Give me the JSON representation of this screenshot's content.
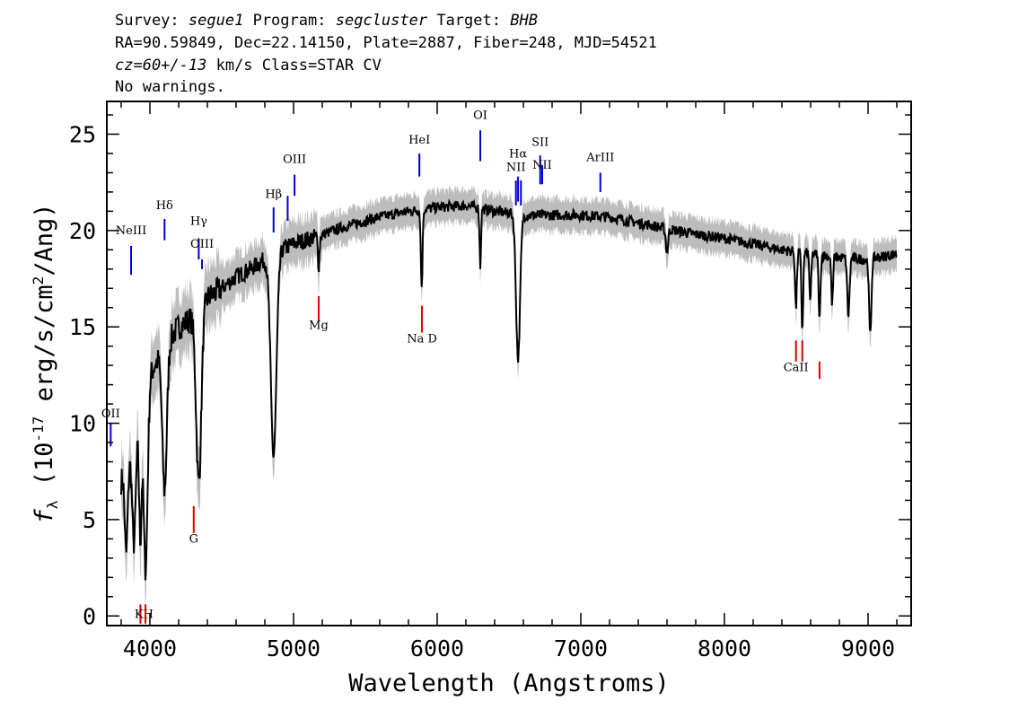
{
  "header": {
    "line1": {
      "survey_label": "Survey:",
      "survey": "segue1",
      "program_label": "Program:",
      "program": "segcluster",
      "target_label": "Target:",
      "target": "BHB"
    },
    "line2": "RA=90.59849, Dec=22.14150, Plate=2887, Fiber=248, MJD=54521",
    "line3": {
      "cz": "cz=60+/-13",
      "rest": " km/s Class=STAR CV"
    },
    "line4": "No warnings."
  },
  "chart_data": {
    "type": "line",
    "xlabel": "Wavelength (Angstroms)",
    "ylabel": "f",
    "ylabel_sub": "λ",
    "ylabel_rest": " (10",
    "ylabel_exp": "-17",
    "ylabel_units": " erg/s/cm",
    "ylabel_exp2": "2",
    "ylabel_tail": "/Ang)",
    "xlim": [
      3700,
      9300
    ],
    "ylim": [
      -0.5,
      26.7
    ],
    "x_ticks": [
      4000,
      5000,
      6000,
      7000,
      8000,
      9000
    ],
    "x_tick_labels": [
      "4000",
      "5000",
      "6000",
      "7000",
      "8000",
      "9000"
    ],
    "y_ticks": [
      0,
      5,
      10,
      15,
      20,
      25
    ],
    "y_tick_labels": [
      "0",
      "5",
      "10",
      "15",
      "20",
      "25"
    ],
    "colors": {
      "spectrum": "#000000",
      "error_band": "#bdbdbd",
      "emission": "#0000cc",
      "absorption": "#dd0000"
    },
    "continuum": [
      [
        3800,
        7.0
      ],
      [
        3900,
        9.0
      ],
      [
        4000,
        12.5
      ],
      [
        4100,
        14.0
      ],
      [
        4200,
        15.0
      ],
      [
        4300,
        15.5
      ],
      [
        4400,
        16.5
      ],
      [
        4500,
        17.0
      ],
      [
        4600,
        17.6
      ],
      [
        4700,
        18.0
      ],
      [
        4800,
        18.5
      ],
      [
        4900,
        19.0
      ],
      [
        5000,
        19.3
      ],
      [
        5200,
        19.8
      ],
      [
        5400,
        20.3
      ],
      [
        5600,
        20.7
      ],
      [
        5800,
        21.0
      ],
      [
        6000,
        21.2
      ],
      [
        6200,
        21.3
      ],
      [
        6400,
        21.0
      ],
      [
        6600,
        20.8
      ],
      [
        6800,
        20.8
      ],
      [
        7000,
        20.8
      ],
      [
        7200,
        20.7
      ],
      [
        7400,
        20.4
      ],
      [
        7600,
        20.1
      ],
      [
        7800,
        19.8
      ],
      [
        8000,
        19.6
      ],
      [
        8200,
        19.3
      ],
      [
        8400,
        19.0
      ],
      [
        8600,
        18.8
      ],
      [
        8800,
        18.6
      ],
      [
        9000,
        18.5
      ],
      [
        9200,
        18.8
      ]
    ],
    "absorption_features": [
      {
        "center": 3835,
        "depth": 4.5,
        "width": 10
      },
      {
        "center": 3889,
        "depth": 5.0,
        "width": 12
      },
      {
        "center": 3933,
        "depth": 6.0,
        "width": 8
      },
      {
        "center": 3970,
        "depth": 9.0,
        "width": 14
      },
      {
        "center": 4102,
        "depth": 7.5,
        "width": 16
      },
      {
        "center": 4340,
        "depth": 9.0,
        "width": 18
      },
      {
        "center": 4861,
        "depth": 10.5,
        "width": 20
      },
      {
        "center": 5175,
        "depth": 1.5,
        "width": 6
      },
      {
        "center": 5892,
        "depth": 4.0,
        "width": 6
      },
      {
        "center": 6300,
        "depth": 3.0,
        "width": 5
      },
      {
        "center": 6563,
        "depth": 7.5,
        "width": 14
      },
      {
        "center": 7600,
        "depth": 1.2,
        "width": 8
      },
      {
        "center": 8498,
        "depth": 3.0,
        "width": 6
      },
      {
        "center": 8542,
        "depth": 4.0,
        "width": 6
      },
      {
        "center": 8598,
        "depth": 2.5,
        "width": 6
      },
      {
        "center": 8662,
        "depth": 3.5,
        "width": 6
      },
      {
        "center": 8750,
        "depth": 2.5,
        "width": 6
      },
      {
        "center": 8863,
        "depth": 3.0,
        "width": 8
      },
      {
        "center": 9015,
        "depth": 4.0,
        "width": 8
      }
    ],
    "emission_lines": [
      {
        "label": "OII",
        "x": 3727,
        "y0": 8.8,
        "y1": 10.0,
        "label_y": 10.3
      },
      {
        "label": "NeIII",
        "x": 3869,
        "y0": 17.7,
        "y1": 19.2,
        "label_y": 19.8
      },
      {
        "label": "Hδ",
        "x": 4102,
        "y0": 19.5,
        "y1": 20.6,
        "label_y": 21.1
      },
      {
        "label": "Hγ",
        "x": 4340,
        "y0": 18.5,
        "y1": 19.6,
        "label_y": 20.3
      },
      {
        "label": "OIII",
        "x": 4363,
        "y0": 18.0,
        "y1": 18.5,
        "label_y": 19.1
      },
      {
        "label": "Hβ",
        "x": 4861,
        "y0": 19.9,
        "y1": 21.2,
        "label_y": 21.7
      },
      {
        "label": "OIII",
        "x": 4959,
        "y0": 20.5,
        "y1": 21.8,
        "label_y": null
      },
      {
        "label": "OIII",
        "x": 5007,
        "y0": 21.8,
        "y1": 22.9,
        "label_y": 23.5
      },
      {
        "label": "HeI",
        "x": 5876,
        "y0": 22.8,
        "y1": 24.0,
        "label_y": 24.5
      },
      {
        "label": "OI",
        "x": 6300,
        "y0": 23.6,
        "y1": 25.2,
        "label_y": 25.8
      },
      {
        "label": "NII",
        "x": 6548,
        "y0": 21.3,
        "y1": 22.6,
        "label_y": 23.1
      },
      {
        "label": "Hα",
        "x": 6563,
        "y0": 21.5,
        "y1": 22.8,
        "label_y": 23.8
      },
      {
        "label": "NII",
        "x": 6583,
        "y0": 21.3,
        "y1": 22.6,
        "label_y": null
      },
      {
        "label": "SII",
        "x": 6717,
        "y0": 22.4,
        "y1": 23.9,
        "label_y": 24.4
      },
      {
        "label": "NII",
        "x": 6731,
        "y0": 22.4,
        "y1": 23.4,
        "label_y": 23.2
      },
      {
        "label": "ArIII",
        "x": 7136,
        "y0": 22.0,
        "y1": 23.0,
        "label_y": 23.6
      }
    ],
    "absorption_lines": [
      {
        "label": "KH",
        "x": 3934,
        "y0": 0.6,
        "y1": -0.4
      },
      {
        "label": "",
        "x": 3969,
        "y0": 0.6,
        "y1": -0.4
      },
      {
        "label": "G",
        "x": 4305,
        "y0": 5.7,
        "y1": 4.3
      },
      {
        "label": "Mg",
        "x": 5175,
        "y0": 16.6,
        "y1": 15.3
      },
      {
        "label": "Na D",
        "x": 5894,
        "y0": 16.1,
        "y1": 14.7
      },
      {
        "label": "CaII",
        "x": 8498,
        "y0": 14.3,
        "y1": 13.2
      },
      {
        "label": "",
        "x": 8542,
        "y0": 14.3,
        "y1": 13.2
      },
      {
        "label": "",
        "x": 8662,
        "y0": 13.2,
        "y1": 12.3
      }
    ],
    "absorption_label_positions": {
      "KH": -0.1,
      "G": 3.8,
      "Mg": 14.9,
      "Na D": 14.2,
      "CaII": 12.7
    }
  }
}
